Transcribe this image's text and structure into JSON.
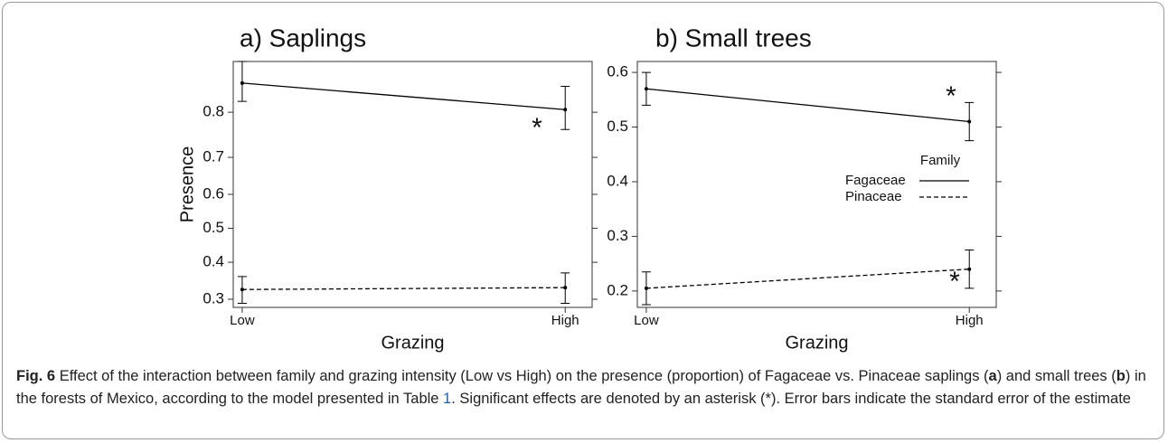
{
  "chart_data": [
    {
      "type": "line",
      "title": "a) Saplings",
      "xlabel": "Grazing",
      "ylabel": "Presence",
      "categories": [
        "Low",
        "High"
      ],
      "yscale": "logit",
      "ylim": [
        0.28,
        0.88
      ],
      "yticks": [
        0.3,
        0.4,
        0.5,
        0.6,
        0.7,
        0.8
      ],
      "legend": false,
      "series": [
        {
          "name": "Fagaceae",
          "color": "#000000",
          "dash": "solid",
          "values": [
            0.85,
            0.805
          ],
          "errors": [
            0.03,
            0.04
          ]
        },
        {
          "name": "Pinaceae",
          "color": "#000000",
          "dash": "dashed",
          "values": [
            0.325,
            0.33
          ],
          "errors": [
            0.035,
            0.04
          ]
        }
      ],
      "annotations": [
        "*"
      ]
    },
    {
      "type": "line",
      "title": "b) Small trees",
      "xlabel": "Grazing",
      "categories": [
        "Low",
        "High"
      ],
      "yscale": "linear",
      "ylim": [
        0.17,
        0.62
      ],
      "yticks": [
        0.2,
        0.3,
        0.4,
        0.5,
        0.6
      ],
      "legend": true,
      "legend_title": "Family",
      "series": [
        {
          "name": "Fagaceae",
          "color": "#000000",
          "dash": "solid",
          "values": [
            0.57,
            0.51
          ],
          "errors": [
            0.03,
            0.035
          ]
        },
        {
          "name": "Pinaceae",
          "color": "#000000",
          "dash": "dashed",
          "values": [
            0.205,
            0.24
          ],
          "errors": [
            0.03,
            0.035
          ]
        }
      ],
      "annotations": [
        "*",
        "*"
      ]
    }
  ],
  "caption": {
    "label": "Fig. 6",
    "segments": [
      "Effect of the interaction between family and grazing intensity (Low vs High) on the presence (proportion) of Fagaceae vs. Pinaceae saplings (",
      "a",
      ") and small trees (",
      "b",
      ") in the forests of Mexico, according to the model presented in Table ",
      "1",
      ". Significant effects are denoted by an asterisk (*). Error bars indicate the standard error of the estimate"
    ]
  }
}
